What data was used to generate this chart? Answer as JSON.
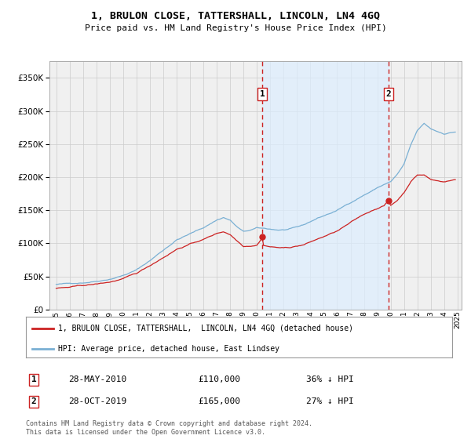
{
  "title": "1, BRULON CLOSE, TATTERSHALL, LINCOLN, LN4 4GQ",
  "subtitle": "Price paid vs. HM Land Registry's House Price Index (HPI)",
  "legend_line1": "1, BRULON CLOSE, TATTERSHALL,  LINCOLN, LN4 4GQ (detached house)",
  "legend_line2": "HPI: Average price, detached house, East Lindsey",
  "transaction1_date": "28-MAY-2010",
  "transaction1_price": "£110,000",
  "transaction1_pct": "36% ↓ HPI",
  "transaction2_date": "28-OCT-2019",
  "transaction2_price": "£165,000",
  "transaction2_pct": "27% ↓ HPI",
  "footnote": "Contains HM Land Registry data © Crown copyright and database right 2024.\nThis data is licensed under the Open Government Licence v3.0.",
  "hpi_color": "#7ab0d4",
  "price_color": "#cc2222",
  "vline_color": "#cc2222",
  "shade_color": "#ddeeff",
  "grid_color": "#cccccc",
  "background_color": "#f0f0f0",
  "ylim": [
    0,
    375000
  ],
  "yticks": [
    0,
    50000,
    100000,
    150000,
    200000,
    250000,
    300000,
    350000
  ],
  "transaction1_x": 2010.41,
  "transaction1_y": 110000,
  "transaction2_x": 2019.83,
  "transaction2_y": 165000,
  "xlim_left": 1994.5,
  "xlim_right": 2025.3
}
